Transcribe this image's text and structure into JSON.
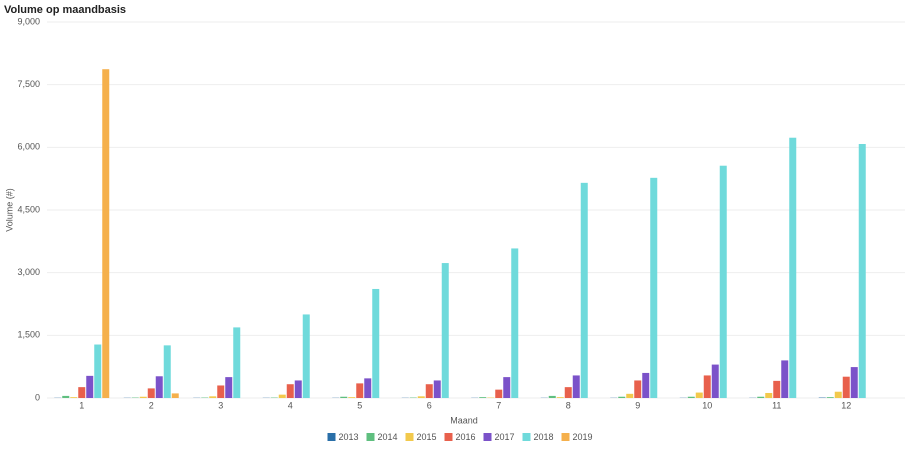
{
  "chart_data": {
    "type": "bar",
    "title": "Volume op maandbasis",
    "x_label": "Maand",
    "y_label": "Volume (#)",
    "categories": [
      "1",
      "2",
      "3",
      "4",
      "5",
      "6",
      "7",
      "8",
      "9",
      "10",
      "11",
      "12"
    ],
    "series": [
      {
        "name": "2013",
        "color": "#2a6fa8",
        "values": [
          5,
          5,
          5,
          5,
          5,
          5,
          5,
          5,
          5,
          5,
          5,
          10
        ]
      },
      {
        "name": "2014",
        "color": "#5fbf7f",
        "values": [
          50,
          10,
          10,
          10,
          30,
          10,
          20,
          50,
          30,
          30,
          30,
          20
        ]
      },
      {
        "name": "2015",
        "color": "#f2c94c",
        "values": [
          20,
          30,
          40,
          80,
          20,
          40,
          10,
          20,
          100,
          130,
          120,
          150
        ]
      },
      {
        "name": "2016",
        "color": "#e8604c",
        "values": [
          260,
          230,
          300,
          330,
          350,
          330,
          200,
          260,
          420,
          540,
          410,
          510
        ]
      },
      {
        "name": "2017",
        "color": "#7b52c9",
        "values": [
          530,
          520,
          500,
          420,
          470,
          420,
          500,
          540,
          600,
          800,
          900,
          740
        ]
      },
      {
        "name": "2018",
        "color": "#6fdadb",
        "values": [
          1280,
          1260,
          1690,
          2000,
          2610,
          3230,
          3580,
          5150,
          5270,
          5560,
          6230,
          6080
        ]
      },
      {
        "name": "2019",
        "color": "#f5b04c",
        "values": [
          7870,
          110,
          null,
          null,
          null,
          null,
          null,
          null,
          null,
          null,
          null,
          null
        ]
      }
    ],
    "ylim": [
      0,
      9000
    ],
    "yticks": [
      0,
      {
        "value": 1500,
        "label": "1,500"
      },
      {
        "value": 3000,
        "label": "3,000"
      },
      {
        "value": 4500,
        "label": "4,500"
      },
      {
        "value": 6000,
        "label": "6,000"
      },
      {
        "value": 7500,
        "label": "7,500"
      },
      {
        "value": 9000,
        "label": "9,000"
      }
    ],
    "grid": true,
    "legend": "bottom"
  }
}
